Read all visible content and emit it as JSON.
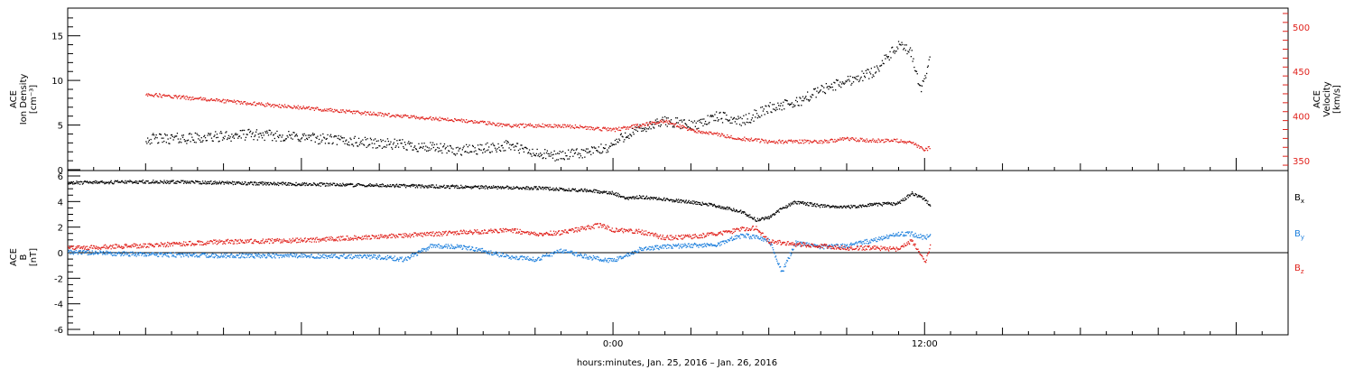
{
  "chart_data": [
    {
      "type": "scatter",
      "ylabel_left": [
        "ACE",
        "Ion Density",
        "[cm⁻³]"
      ],
      "ylabel_right": [
        "ACE",
        "Velocity",
        "[km/s]"
      ],
      "ylim_left": [
        0,
        18
      ],
      "ylim_right": [
        340,
        520
      ],
      "yticks_left": [
        "0",
        "5",
        "10",
        "15"
      ],
      "yticks_right": [
        "350",
        "400",
        "450",
        "500"
      ],
      "xlim_hours": [
        -21,
        26
      ],
      "series": [
        {
          "axis": "left",
          "color": "#000000",
          "points": [
            [
              -18,
              3.5
            ],
            [
              -16,
              3.6
            ],
            [
              -14,
              4.0
            ],
            [
              -12,
              3.7
            ],
            [
              -10,
              3.2
            ],
            [
              -8,
              2.8
            ],
            [
              -6,
              2.2
            ],
            [
              -5,
              2.4
            ],
            [
              -4,
              2.8
            ],
            [
              -3,
              1.8
            ],
            [
              -2,
              1.6
            ],
            [
              -1,
              2.0
            ],
            [
              -0.2,
              2.5
            ],
            [
              0.5,
              4.0
            ],
            [
              1,
              4.5
            ],
            [
              2,
              5.5
            ],
            [
              3,
              5.0
            ],
            [
              4,
              6.0
            ],
            [
              5,
              5.5
            ],
            [
              6,
              7.0
            ],
            [
              7,
              7.5
            ],
            [
              8,
              9.0
            ],
            [
              9,
              10.0
            ],
            [
              9.5,
              10.5
            ],
            [
              10,
              11.0
            ],
            [
              10.5,
              12.5
            ],
            [
              11,
              14.0
            ],
            [
              11.5,
              13.0
            ],
            [
              11.8,
              9.0
            ],
            [
              12,
              10.0
            ],
            [
              12.2,
              13.5
            ]
          ]
        },
        {
          "axis": "right",
          "color": "#e0211b",
          "points": [
            [
              -18,
              425
            ],
            [
              -16,
              420
            ],
            [
              -14,
              415
            ],
            [
              -12,
              410
            ],
            [
              -10,
              405
            ],
            [
              -8,
              400
            ],
            [
              -6,
              396
            ],
            [
              -4,
              390
            ],
            [
              -2,
              390
            ],
            [
              0,
              385
            ],
            [
              1,
              390
            ],
            [
              2,
              395
            ],
            [
              3,
              385
            ],
            [
              4,
              380
            ],
            [
              5,
              375
            ],
            [
              6,
              372
            ],
            [
              7,
              372
            ],
            [
              8,
              372
            ],
            [
              9,
              375
            ],
            [
              10,
              373
            ],
            [
              11,
              373
            ],
            [
              11.5,
              370
            ],
            [
              12,
              363
            ],
            [
              12.2,
              365
            ]
          ]
        }
      ]
    },
    {
      "type": "scatter",
      "ylabel": [
        "ACE",
        "B",
        "[nT]"
      ],
      "ylim": [
        -6,
        6
      ],
      "yticks": [
        "-6",
        "-4",
        "-2",
        "0",
        "2",
        "4",
        "6"
      ],
      "xlim_hours": [
        -21,
        26
      ],
      "xticks": [
        "0:00",
        "12:00"
      ],
      "xlabel": "hours:minutes, Jan. 25, 2016 – Jan. 26, 2016",
      "series": [
        {
          "name": "Bx",
          "color": "#000000",
          "points": [
            [
              -21,
              5.5
            ],
            [
              -18,
              5.6
            ],
            [
              -15,
              5.5
            ],
            [
              -12,
              5.4
            ],
            [
              -9,
              5.3
            ],
            [
              -6,
              5.2
            ],
            [
              -3,
              5.1
            ],
            [
              -1,
              4.9
            ],
            [
              0,
              4.7
            ],
            [
              0.5,
              4.3
            ],
            [
              1,
              4.4
            ],
            [
              3,
              4.0
            ],
            [
              4,
              3.7
            ],
            [
              5,
              3.2
            ],
            [
              5.5,
              2.6
            ],
            [
              6,
              2.8
            ],
            [
              6.5,
              3.5
            ],
            [
              7,
              4.0
            ],
            [
              8,
              3.7
            ],
            [
              9,
              3.6
            ],
            [
              10,
              3.8
            ],
            [
              11,
              3.9
            ],
            [
              11.5,
              4.7
            ],
            [
              12,
              4.2
            ],
            [
              12.2,
              3.7
            ]
          ]
        },
        {
          "name": "By",
          "color": "#1c7fdd",
          "points": [
            [
              -21,
              0.1
            ],
            [
              -18,
              -0.1
            ],
            [
              -15,
              -0.2
            ],
            [
              -12,
              -0.2
            ],
            [
              -9,
              -0.3
            ],
            [
              -8,
              -0.5
            ],
            [
              -7,
              0.6
            ],
            [
              -6,
              0.5
            ],
            [
              -5,
              0.2
            ],
            [
              -4,
              -0.3
            ],
            [
              -3,
              -0.5
            ],
            [
              -2,
              0.2
            ],
            [
              -1,
              -0.3
            ],
            [
              0,
              -0.6
            ],
            [
              1,
              0.3
            ],
            [
              2,
              0.5
            ],
            [
              3,
              0.6
            ],
            [
              4,
              0.7
            ],
            [
              5,
              1.4
            ],
            [
              6,
              1.0
            ],
            [
              6.5,
              -1.5
            ],
            [
              7,
              0.8
            ],
            [
              8,
              0.5
            ],
            [
              9,
              0.6
            ],
            [
              10,
              1.0
            ],
            [
              11,
              1.5
            ],
            [
              11.5,
              1.5
            ],
            [
              12,
              1.2
            ],
            [
              12.2,
              1.4
            ]
          ]
        },
        {
          "name": "Bz",
          "color": "#e0211b",
          "points": [
            [
              -21,
              0.4
            ],
            [
              -18,
              0.6
            ],
            [
              -15,
              0.9
            ],
            [
              -12,
              1.0
            ],
            [
              -9,
              1.3
            ],
            [
              -6,
              1.6
            ],
            [
              -4,
              1.8
            ],
            [
              -3,
              1.5
            ],
            [
              -2,
              1.6
            ],
            [
              -1,
              2.0
            ],
            [
              -0.5,
              2.2
            ],
            [
              0,
              1.8
            ],
            [
              1,
              1.7
            ],
            [
              2,
              1.2
            ],
            [
              3,
              1.3
            ],
            [
              4,
              1.5
            ],
            [
              5,
              1.9
            ],
            [
              5.5,
              2.0
            ],
            [
              6,
              0.9
            ],
            [
              7,
              0.7
            ],
            [
              8,
              0.6
            ],
            [
              9,
              0.4
            ],
            [
              10,
              0.4
            ],
            [
              11,
              0.3
            ],
            [
              11.5,
              1.0
            ],
            [
              12,
              -0.8
            ],
            [
              12.2,
              0.5
            ]
          ]
        }
      ],
      "legend": [
        {
          "label": "B",
          "sub": "x",
          "color": "#000000"
        },
        {
          "label": "B",
          "sub": "y",
          "color": "#1c7fdd"
        },
        {
          "label": "B",
          "sub": "z",
          "color": "#e0211b"
        }
      ]
    }
  ]
}
